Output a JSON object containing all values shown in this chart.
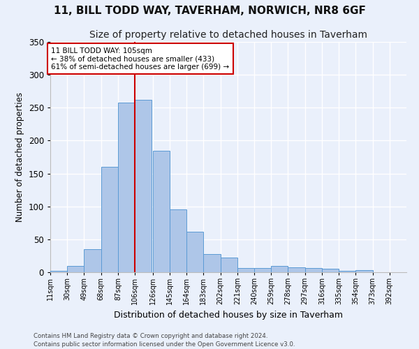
{
  "title": "11, BILL TODD WAY, TAVERHAM, NORWICH, NR8 6GF",
  "subtitle": "Size of property relative to detached houses in Taverham",
  "xlabel": "Distribution of detached houses by size in Taverham",
  "ylabel": "Number of detached properties",
  "bar_color": "#aec6e8",
  "bar_edge_color": "#5b9bd5",
  "background_color": "#eaf0fb",
  "grid_color": "#ffffff",
  "categories": [
    "11sqm",
    "30sqm",
    "49sqm",
    "68sqm",
    "87sqm",
    "106sqm",
    "126sqm",
    "145sqm",
    "164sqm",
    "183sqm",
    "202sqm",
    "221sqm",
    "240sqm",
    "259sqm",
    "278sqm",
    "297sqm",
    "316sqm",
    "335sqm",
    "354sqm",
    "373sqm",
    "392sqm"
  ],
  "bin_edges": [
    11,
    30,
    49,
    68,
    87,
    106,
    126,
    145,
    164,
    183,
    202,
    221,
    240,
    259,
    278,
    297,
    316,
    335,
    354,
    373,
    392
  ],
  "values": [
    2,
    10,
    35,
    160,
    258,
    262,
    185,
    95,
    62,
    28,
    22,
    6,
    6,
    10,
    7,
    6,
    5,
    2,
    3,
    0,
    0
  ],
  "vline_x": 106,
  "annotation_title": "11 BILL TODD WAY: 105sqm",
  "annotation_line1": "← 38% of detached houses are smaller (433)",
  "annotation_line2": "61% of semi-detached houses are larger (699) →",
  "annotation_box_color": "#ffffff",
  "annotation_box_edge": "#cc0000",
  "vline_color": "#cc0000",
  "footer1": "Contains HM Land Registry data © Crown copyright and database right 2024.",
  "footer2": "Contains public sector information licensed under the Open Government Licence v3.0.",
  "ylim": [
    0,
    350
  ],
  "title_fontsize": 11,
  "subtitle_fontsize": 10
}
